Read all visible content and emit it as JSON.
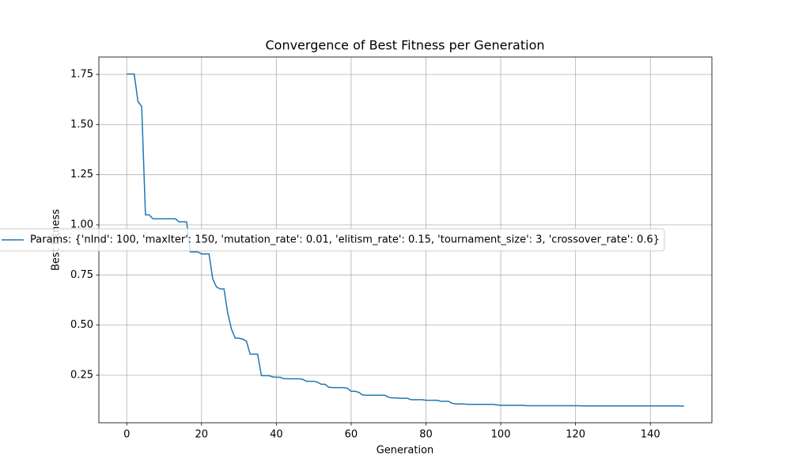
{
  "chart_data": {
    "type": "line",
    "title": "Convergence of Best Fitness per Generation",
    "xlabel": "Generation",
    "ylabel": "Best Fitness",
    "x": [
      0,
      1,
      2,
      3,
      4,
      5,
      6,
      7,
      8,
      9,
      10,
      11,
      12,
      13,
      14,
      15,
      16,
      17,
      18,
      19,
      20,
      21,
      22,
      23,
      24,
      25,
      26,
      27,
      28,
      29,
      30,
      31,
      32,
      33,
      34,
      35,
      36,
      37,
      38,
      39,
      40,
      41,
      42,
      43,
      44,
      45,
      46,
      47,
      48,
      49,
      50,
      51,
      52,
      53,
      54,
      55,
      56,
      57,
      58,
      59,
      60,
      61,
      62,
      63,
      64,
      65,
      66,
      67,
      68,
      69,
      70,
      71,
      72,
      73,
      74,
      75,
      76,
      77,
      78,
      79,
      80,
      81,
      82,
      83,
      84,
      85,
      86,
      87,
      88,
      89,
      90,
      91,
      92,
      93,
      94,
      95,
      96,
      97,
      98,
      99,
      100,
      101,
      102,
      103,
      104,
      105,
      106,
      107,
      108,
      109,
      110,
      111,
      112,
      113,
      114,
      115,
      116,
      117,
      118,
      119,
      120,
      121,
      122,
      123,
      124,
      125,
      126,
      127,
      128,
      129,
      130,
      131,
      132,
      133,
      134,
      135,
      136,
      137,
      138,
      139,
      140,
      141,
      142,
      143,
      144,
      145,
      146,
      147,
      148,
      149
    ],
    "series": [
      {
        "name": "Params: {'nInd': 100, 'maxIter': 150, 'mutation_rate': 0.01, 'elitism_rate': 0.15, 'tournament_size': 3, 'crossover_rate': 0.6}",
        "color": "#1f77b4",
        "values": [
          1.752,
          1.752,
          1.752,
          1.615,
          1.59,
          1.05,
          1.05,
          1.03,
          1.03,
          1.03,
          1.03,
          1.03,
          1.03,
          1.03,
          1.015,
          1.015,
          1.015,
          0.865,
          0.865,
          0.865,
          0.855,
          0.855,
          0.855,
          0.73,
          0.69,
          0.68,
          0.68,
          0.56,
          0.48,
          0.435,
          0.435,
          0.43,
          0.42,
          0.355,
          0.355,
          0.355,
          0.248,
          0.248,
          0.248,
          0.242,
          0.24,
          0.24,
          0.233,
          0.232,
          0.232,
          0.232,
          0.232,
          0.23,
          0.22,
          0.22,
          0.22,
          0.215,
          0.205,
          0.205,
          0.19,
          0.188,
          0.188,
          0.188,
          0.188,
          0.185,
          0.17,
          0.17,
          0.165,
          0.152,
          0.15,
          0.15,
          0.15,
          0.15,
          0.15,
          0.15,
          0.14,
          0.137,
          0.137,
          0.135,
          0.135,
          0.135,
          0.128,
          0.128,
          0.128,
          0.128,
          0.125,
          0.125,
          0.125,
          0.125,
          0.12,
          0.12,
          0.12,
          0.11,
          0.107,
          0.107,
          0.107,
          0.105,
          0.105,
          0.105,
          0.105,
          0.105,
          0.105,
          0.105,
          0.105,
          0.102,
          0.1,
          0.1,
          0.1,
          0.1,
          0.1,
          0.1,
          0.1,
          0.098,
          0.098,
          0.098,
          0.098,
          0.098,
          0.098,
          0.098,
          0.098,
          0.098,
          0.098,
          0.098,
          0.098,
          0.098,
          0.098,
          0.098,
          0.097,
          0.097,
          0.097,
          0.097,
          0.097,
          0.097,
          0.097,
          0.097,
          0.097,
          0.097,
          0.097,
          0.097,
          0.097,
          0.097,
          0.097,
          0.097,
          0.097,
          0.097,
          0.097,
          0.097,
          0.097,
          0.097,
          0.097,
          0.097,
          0.097,
          0.097,
          0.097,
          0.096
        ]
      }
    ],
    "xlim": [
      -7.45,
      156.45
    ],
    "xticks": [
      0,
      20,
      40,
      60,
      80,
      100,
      120,
      140
    ],
    "ylim": [
      0.013,
      1.837
    ],
    "yticks": [
      0.25,
      {
        "value": 0.5,
        "label": "0.50"
      },
      0.75,
      {
        "value": 1.0,
        "label": "1.00"
      },
      1.25,
      {
        "value": 1.5,
        "label": "1.50"
      },
      1.75
    ],
    "grid": true,
    "legend": "center left"
  }
}
